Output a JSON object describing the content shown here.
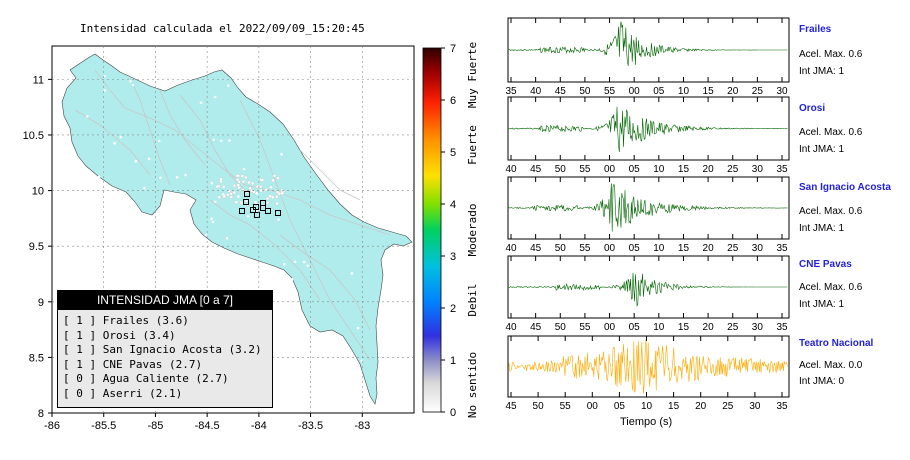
{
  "map": {
    "title": "Intensidad calculada el 2022/09/09_15:20:45",
    "lon_ticks": [
      "-86",
      "-85.5",
      "-85",
      "-84.5",
      "-84",
      "-83.5",
      "-83"
    ],
    "lat_ticks": [
      "11",
      "10.5",
      "10",
      "9.5",
      "9",
      "8.5",
      "8"
    ],
    "land_color": "#b0ecec",
    "road_color": "#c8c8c8"
  },
  "colorbar": {
    "ticks": [
      "0",
      "1",
      "2",
      "3",
      "4",
      "5",
      "6",
      "7"
    ],
    "labels": [
      "No sentido",
      "Debil",
      "Moderado",
      "Fuerte",
      "Muy Fuerte"
    ]
  },
  "legend": {
    "title": "INTENSIDAD JMA [0 a 7]",
    "rows": [
      "[ 1 ]  Frailes (3.6)",
      "[ 1 ]  Orosi (3.4)",
      "[ 1 ]  San Ignacio Acosta (3.2)",
      "[ 1 ]  CNE Pavas (2.7)",
      "[ 0 ]  Agua Caliente (2.7)",
      "[ 0 ]  Aserri (2.1)"
    ]
  },
  "traces": {
    "x_label": "Tiempo (s)",
    "panels": [
      {
        "name": "Frailes",
        "accel": "Acel. Max. 0.6",
        "jma": "Int JMA: 1",
        "color": "#006600",
        "ticks": [
          "35",
          "40",
          "45",
          "50",
          "55",
          "00",
          "05",
          "10",
          "15",
          "20",
          "25",
          "30"
        ]
      },
      {
        "name": "Orosi",
        "accel": "Acel. Max. 0.6",
        "jma": "Int JMA: 1",
        "color": "#006600",
        "ticks": [
          "40",
          "45",
          "50",
          "55",
          "00",
          "05",
          "10",
          "15",
          "20",
          "25",
          "30",
          "35"
        ]
      },
      {
        "name": "San Ignacio Acosta",
        "accel": "Acel. Max. 0.6",
        "jma": "Int JMA: 1",
        "color": "#006600",
        "ticks": [
          "40",
          "45",
          "50",
          "55",
          "00",
          "05",
          "10",
          "15",
          "20",
          "25",
          "30",
          "35"
        ]
      },
      {
        "name": "CNE Pavas",
        "accel": "Acel. Max. 0.6",
        "jma": "Int JMA: 1",
        "color": "#006600",
        "ticks": [
          "40",
          "45",
          "50",
          "55",
          "00",
          "05",
          "10",
          "15",
          "20",
          "25",
          "30",
          "35"
        ]
      },
      {
        "name": "Teatro Nacional",
        "accel": "Acel. Max. 0.0",
        "jma": "Int JMA: 0",
        "color": "#ffaa00",
        "ticks": [
          "45",
          "50",
          "55",
          "00",
          "05",
          "10",
          "15",
          "20",
          "25",
          "30",
          "35"
        ]
      }
    ]
  },
  "chart_data": [
    {
      "type": "map",
      "title": "Intensidad calculada el 2022/09/09_15:20:45",
      "xlim": [
        -86,
        -82.5
      ],
      "ylim": [
        8,
        11.3
      ],
      "stations": [
        {
          "name": "Frailes",
          "intensity": 3.6,
          "jma": 1
        },
        {
          "name": "Orosi",
          "intensity": 3.4,
          "jma": 1
        },
        {
          "name": "San Ignacio Acosta",
          "intensity": 3.2,
          "jma": 1
        },
        {
          "name": "CNE Pavas",
          "intensity": 2.7,
          "jma": 1
        },
        {
          "name": "Agua Caliente",
          "intensity": 2.7,
          "jma": 0
        },
        {
          "name": "Aserri",
          "intensity": 2.1,
          "jma": 0
        }
      ]
    },
    {
      "type": "line",
      "xlabel": "Tiempo (s)",
      "series": [
        {
          "name": "Frailes",
          "peak_accel": 0.6,
          "jma": 1
        },
        {
          "name": "Orosi",
          "peak_accel": 0.6,
          "jma": 1
        },
        {
          "name": "San Ignacio Acosta",
          "peak_accel": 0.6,
          "jma": 1
        },
        {
          "name": "CNE Pavas",
          "peak_accel": 0.6,
          "jma": 1
        },
        {
          "name": "Teatro Nacional",
          "peak_accel": 0.0,
          "jma": 0
        }
      ]
    }
  ]
}
